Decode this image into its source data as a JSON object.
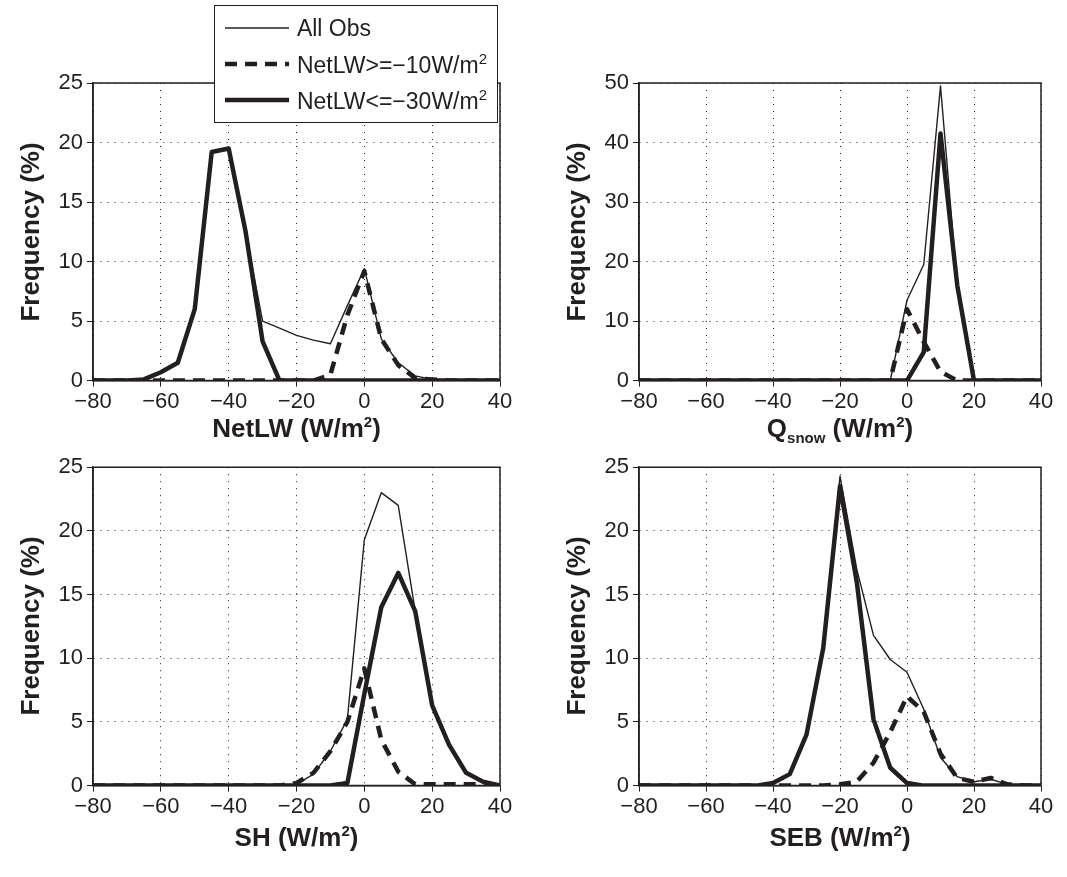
{
  "chart_data": [
    {
      "type": "line",
      "xlabel": "NetLW (W/m$^{2}$)",
      "ylabel": "Frequency (%)",
      "legend": "top",
      "grid": true,
      "x": [
        -80,
        -75,
        -70,
        -65,
        -60,
        -55,
        -50,
        -45,
        -40,
        -35,
        -30,
        -25,
        -20,
        -15,
        -10,
        -5,
        0,
        5,
        10,
        15,
        20,
        25,
        30,
        35,
        40
      ],
      "xlim": [
        -80,
        40
      ],
      "xticks": [
        {
          "value": -80,
          "label": "−80"
        },
        {
          "value": -60,
          "label": "−60"
        },
        {
          "value": -40,
          "label": "−40"
        },
        {
          "value": -20,
          "label": "−20"
        },
        0,
        20,
        40
      ],
      "ylim": [
        0,
        25
      ],
      "yticks": [
        0,
        5,
        10,
        15,
        20,
        25
      ],
      "series": [
        {
          "name": "All Obs",
          "color": "#231f20",
          "line_style": "solid",
          "values": [
            0,
            0,
            0,
            0.1,
            0.7,
            1.5,
            6,
            19.2,
            19.5,
            12.5,
            5,
            4.4,
            3.8,
            3.4,
            3.1,
            6.3,
            9.4,
            3.5,
            1.5,
            0.4,
            0.1,
            0,
            0,
            0,
            0
          ]
        },
        {
          "name": "NetLW>=−10W/m$^{2}$",
          "color": "#231f20",
          "line_style": "dashed",
          "values": [
            0,
            0,
            0,
            0,
            0,
            0,
            0,
            0,
            0,
            0,
            0,
            0,
            0,
            0,
            0.5,
            5.5,
            9.2,
            3.5,
            1.3,
            0.2,
            0.1,
            0,
            0,
            0,
            0
          ]
        },
        {
          "name": "NetLW<=−30W/m$^{2}$",
          "color": "#231f20",
          "line_style": "solid",
          "values": [
            0,
            0,
            0,
            0.1,
            0.7,
            1.5,
            6,
            19.2,
            19.5,
            12.5,
            3.3,
            0,
            0,
            0,
            0,
            0,
            0,
            0,
            0,
            0,
            0,
            0,
            0,
            0,
            0
          ]
        }
      ]
    },
    {
      "type": "line",
      "xlabel": "Q$_{snow}$ (W/m$^{2}$)",
      "ylabel": "Frequency (%)",
      "grid": true,
      "x": [
        -80,
        -75,
        -70,
        -65,
        -60,
        -55,
        -50,
        -45,
        -40,
        -35,
        -30,
        -25,
        -20,
        -15,
        -10,
        -5,
        0,
        5,
        10,
        15,
        20,
        25,
        30,
        35,
        40
      ],
      "xlim": [
        -80,
        40
      ],
      "xticks": [
        {
          "value": -80,
          "label": "−80"
        },
        {
          "value": -60,
          "label": "−60"
        },
        {
          "value": -40,
          "label": "−40"
        },
        {
          "value": -20,
          "label": "−20"
        },
        0,
        20,
        40
      ],
      "ylim": [
        0,
        50
      ],
      "yticks": [
        0,
        10,
        20,
        30,
        40,
        50
      ],
      "series": [
        {
          "color": "#231f20",
          "line_style": "solid",
          "values": [
            0,
            0,
            0,
            0,
            0,
            0,
            0,
            0,
            0,
            0,
            0,
            0,
            0,
            0,
            0,
            0,
            13.5,
            19.5,
            49.5,
            16,
            0,
            0,
            0,
            0,
            0
          ]
        },
        {
          "color": "#231f20",
          "line_style": "dashed",
          "values": [
            0,
            0,
            0,
            0,
            0,
            0,
            0,
            0,
            0,
            0,
            0,
            0,
            0,
            0,
            0,
            0,
            12,
            6.5,
            1.5,
            0,
            0,
            0,
            0,
            0,
            0
          ]
        },
        {
          "color": "#231f20",
          "line_style": "solid",
          "values": [
            0,
            0,
            0,
            0,
            0,
            0,
            0,
            0,
            0,
            0,
            0,
            0,
            0,
            0,
            0,
            0,
            0,
            4.8,
            41.5,
            16,
            0,
            0,
            0,
            0,
            0
          ]
        }
      ]
    },
    {
      "type": "line",
      "xlabel": "SH (W/m$^{2}$)",
      "ylabel": "Frequency (%)",
      "grid": true,
      "x": [
        -80,
        -75,
        -70,
        -65,
        -60,
        -55,
        -50,
        -45,
        -40,
        -35,
        -30,
        -25,
        -20,
        -15,
        -10,
        -5,
        0,
        5,
        10,
        15,
        20,
        25,
        30,
        35,
        40
      ],
      "xlim": [
        -80,
        40
      ],
      "xticks": [
        {
          "value": -80,
          "label": "−80"
        },
        {
          "value": -60,
          "label": "−60"
        },
        {
          "value": -40,
          "label": "−40"
        },
        {
          "value": -20,
          "label": "−20"
        },
        0,
        20,
        40
      ],
      "ylim": [
        0,
        25
      ],
      "yticks": [
        0,
        5,
        10,
        15,
        20,
        25
      ],
      "series": [
        {
          "color": "#231f20",
          "line_style": "solid",
          "values": [
            0,
            0,
            0,
            0,
            0,
            0,
            0,
            0,
            0,
            0,
            0,
            0,
            0.1,
            0.9,
            2.7,
            5.2,
            19.3,
            23,
            22,
            13.7,
            6.4,
            3.3,
            1.1,
            0.3,
            0
          ]
        },
        {
          "color": "#231f20",
          "line_style": "dashed",
          "values": [
            0,
            0,
            0,
            0,
            0,
            0,
            0,
            0,
            0,
            0,
            0,
            0,
            0.2,
            1,
            2.7,
            5,
            9.2,
            3.6,
            1.1,
            0.1,
            0.1,
            0.1,
            0.1,
            0.1,
            0.1
          ]
        },
        {
          "color": "#231f20",
          "line_style": "solid",
          "values": [
            0,
            0,
            0,
            0,
            0,
            0,
            0,
            0,
            0,
            0,
            0,
            0,
            0,
            0,
            0,
            0.2,
            7.2,
            14,
            16.7,
            13.7,
            6.3,
            3.2,
            1,
            0.3,
            0
          ]
        }
      ]
    },
    {
      "type": "line",
      "xlabel": "SEB (W/m$^{2}$)",
      "ylabel": "Frequency (%)",
      "grid": true,
      "x": [
        -80,
        -75,
        -70,
        -65,
        -60,
        -55,
        -50,
        -45,
        -40,
        -35,
        -30,
        -25,
        -20,
        -15,
        -10,
        -5,
        0,
        5,
        10,
        15,
        20,
        25,
        30,
        35,
        40
      ],
      "xlim": [
        -80,
        40
      ],
      "xticks": [
        {
          "value": -80,
          "label": "−80"
        },
        {
          "value": -60,
          "label": "−60"
        },
        {
          "value": -40,
          "label": "−40"
        },
        {
          "value": -20,
          "label": "−20"
        },
        0,
        20,
        40
      ],
      "ylim": [
        0,
        25
      ],
      "yticks": [
        0,
        5,
        10,
        15,
        20,
        25
      ],
      "series": [
        {
          "color": "#231f20",
          "line_style": "solid",
          "values": [
            0,
            0,
            0,
            0,
            0,
            0,
            0,
            0,
            0.2,
            0.9,
            4.1,
            11,
            24.3,
            17,
            11.8,
            9.9,
            8.9,
            6,
            2.2,
            0.7,
            0.3,
            0.5,
            0.1,
            0,
            0
          ]
        },
        {
          "color": "#231f20",
          "line_style": "dashed",
          "values": [
            0,
            0,
            0,
            0,
            0,
            0,
            0,
            0,
            0,
            0,
            0,
            0,
            0.1,
            0.3,
            1.8,
            4.2,
            7,
            5.8,
            2.5,
            0.6,
            0.3,
            0.6,
            0.1,
            0,
            0
          ]
        },
        {
          "color": "#231f20",
          "line_style": "solid",
          "values": [
            0,
            0,
            0,
            0,
            0,
            0,
            0,
            0,
            0.2,
            0.9,
            4,
            10.8,
            23.5,
            16,
            5.2,
            1.4,
            0.2,
            0,
            0,
            0,
            0,
            0,
            0,
            0,
            0
          ]
        }
      ]
    }
  ]
}
